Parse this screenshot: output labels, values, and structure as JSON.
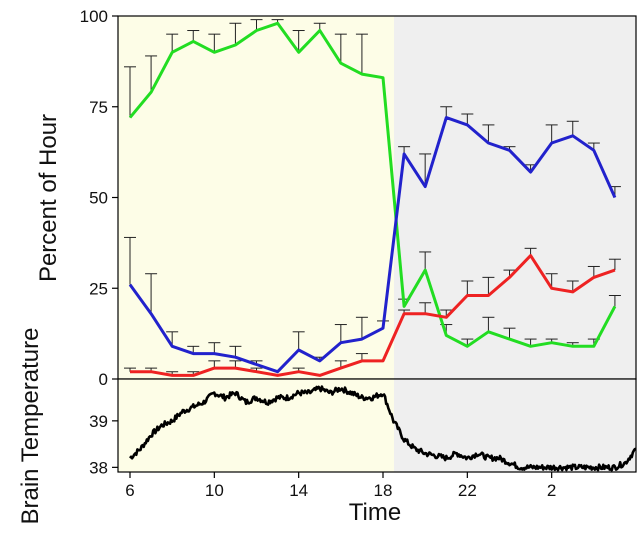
{
  "chart_data": [
    {
      "type": "line",
      "panel": "top",
      "xlabel": "Time",
      "ylabel": "Percent of Hour",
      "ylim": [
        0,
        100
      ],
      "yticks": [
        0,
        25,
        50,
        75,
        100
      ],
      "x_hours_of_day": [
        6,
        7,
        8,
        9,
        10,
        11,
        12,
        13,
        14,
        15,
        16,
        17,
        18,
        19,
        20,
        21,
        22,
        23,
        0,
        1,
        2,
        3,
        4,
        5
      ],
      "shading": [
        {
          "from_hour": 6,
          "to_hour": 18,
          "color": "#fdfde7"
        },
        {
          "from_hour": 18,
          "to_hour": 6,
          "color": "#efefef"
        }
      ],
      "series": [
        {
          "color": "#22dd22",
          "values": [
            72,
            79,
            90,
            93,
            90,
            92,
            96,
            98,
            90,
            96,
            87,
            84,
            83,
            20,
            30,
            12,
            9,
            13,
            11,
            9,
            10,
            9,
            9,
            20
          ],
          "error": [
            14,
            10,
            5,
            3,
            5,
            6,
            3,
            1,
            6,
            2,
            8,
            11,
            0,
            2,
            5,
            3,
            2,
            4,
            3,
            2,
            1,
            1,
            2,
            3
          ]
        },
        {
          "color": "#2222cc",
          "values": [
            26,
            18,
            9,
            7,
            7,
            6,
            4,
            2,
            8,
            5,
            10,
            11,
            14,
            62,
            53,
            72,
            70,
            65,
            63,
            57,
            65,
            67,
            63,
            50
          ],
          "error": [
            13,
            11,
            4,
            2,
            3,
            3,
            1,
            0,
            5,
            1,
            5,
            6,
            2,
            2,
            9,
            3,
            3,
            5,
            1,
            2,
            5,
            4,
            2,
            3
          ]
        },
        {
          "color": "#ee2222",
          "values": [
            2,
            2,
            1,
            1,
            3,
            3,
            2,
            1,
            2,
            1,
            3,
            5,
            5,
            18,
            18,
            17,
            23,
            23,
            28,
            34,
            25,
            24,
            28,
            30
          ],
          "error": [
            1,
            1,
            1,
            1,
            2,
            2,
            1,
            0,
            1,
            0,
            2,
            2,
            0,
            1,
            3,
            2,
            4,
            5,
            2,
            2,
            4,
            3,
            3,
            3
          ]
        }
      ]
    },
    {
      "type": "line",
      "panel": "bottom",
      "xlabel": "Time",
      "ylabel": "Brain Temperature",
      "ylim": [
        37.9,
        39.9
      ],
      "yticks": [
        38,
        39
      ],
      "xticks": [
        "6",
        "10",
        "14",
        "18",
        "22",
        "2"
      ],
      "series": [
        {
          "color": "#000000",
          "x_hours_elapsed": [
            0,
            0.5,
            1,
            1.5,
            2,
            2.5,
            3,
            3.5,
            4,
            4.5,
            5,
            5.5,
            6,
            6.5,
            7,
            7.5,
            8,
            8.5,
            9,
            9.5,
            10,
            10.5,
            11,
            11.5,
            12,
            12.5,
            13,
            13.5,
            14,
            14.5,
            15,
            15.5,
            16,
            16.5,
            17,
            17.5,
            18,
            18.5,
            19,
            19.5,
            20,
            20.5,
            21,
            21.5,
            22,
            22.5,
            23,
            23.5,
            24
          ],
          "values": [
            38.2,
            38.4,
            38.7,
            38.9,
            39.0,
            39.2,
            39.3,
            39.4,
            39.6,
            39.5,
            39.6,
            39.4,
            39.5,
            39.4,
            39.5,
            39.5,
            39.6,
            39.6,
            39.7,
            39.6,
            39.7,
            39.6,
            39.5,
            39.5,
            39.6,
            39.0,
            38.6,
            38.4,
            38.3,
            38.25,
            38.2,
            38.3,
            38.2,
            38.3,
            38.2,
            38.2,
            38.1,
            38.0,
            38.0,
            38.0,
            38.0,
            38.0,
            38.0,
            38.0,
            38.0,
            38.0,
            38.0,
            38.1,
            38.4
          ]
        }
      ]
    }
  ]
}
